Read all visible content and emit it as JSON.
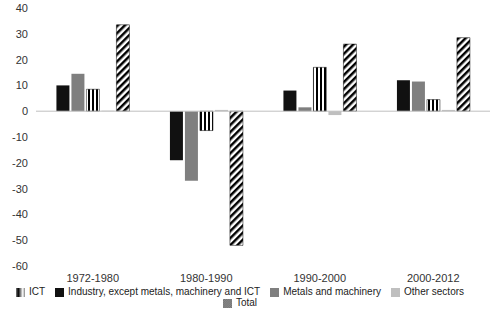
{
  "chart_data": {
    "type": "bar",
    "categories": [
      "1972-1980",
      "1980-1990",
      "1990-2000",
      "2000-2012"
    ],
    "series": [
      {
        "name": "Industry, except metals, machinery and ICT",
        "color": "#111111",
        "values": [
          10,
          -19,
          8,
          12
        ]
      },
      {
        "name": "Metals and machinery",
        "color": "#7f7f7f",
        "values": [
          14.5,
          -27,
          1.5,
          11.5
        ]
      },
      {
        "name": "ICT",
        "color": "#000000",
        "values": [
          8.5,
          -7.5,
          17,
          4.5
        ]
      },
      {
        "name": "Other sectors",
        "color": "#bfbfbf",
        "values": [
          0.2,
          0.5,
          -1.5,
          0.5
        ]
      },
      {
        "name": "Total",
        "color": "#000000",
        "values": [
          33.5,
          -52,
          26,
          28.5
        ]
      }
    ],
    "ylim": [
      -60,
      40
    ],
    "yticks": [
      -60,
      -50,
      -40,
      -30,
      -20,
      -10,
      0,
      10,
      20,
      30,
      40
    ],
    "grid": false,
    "legend": "bottom"
  }
}
